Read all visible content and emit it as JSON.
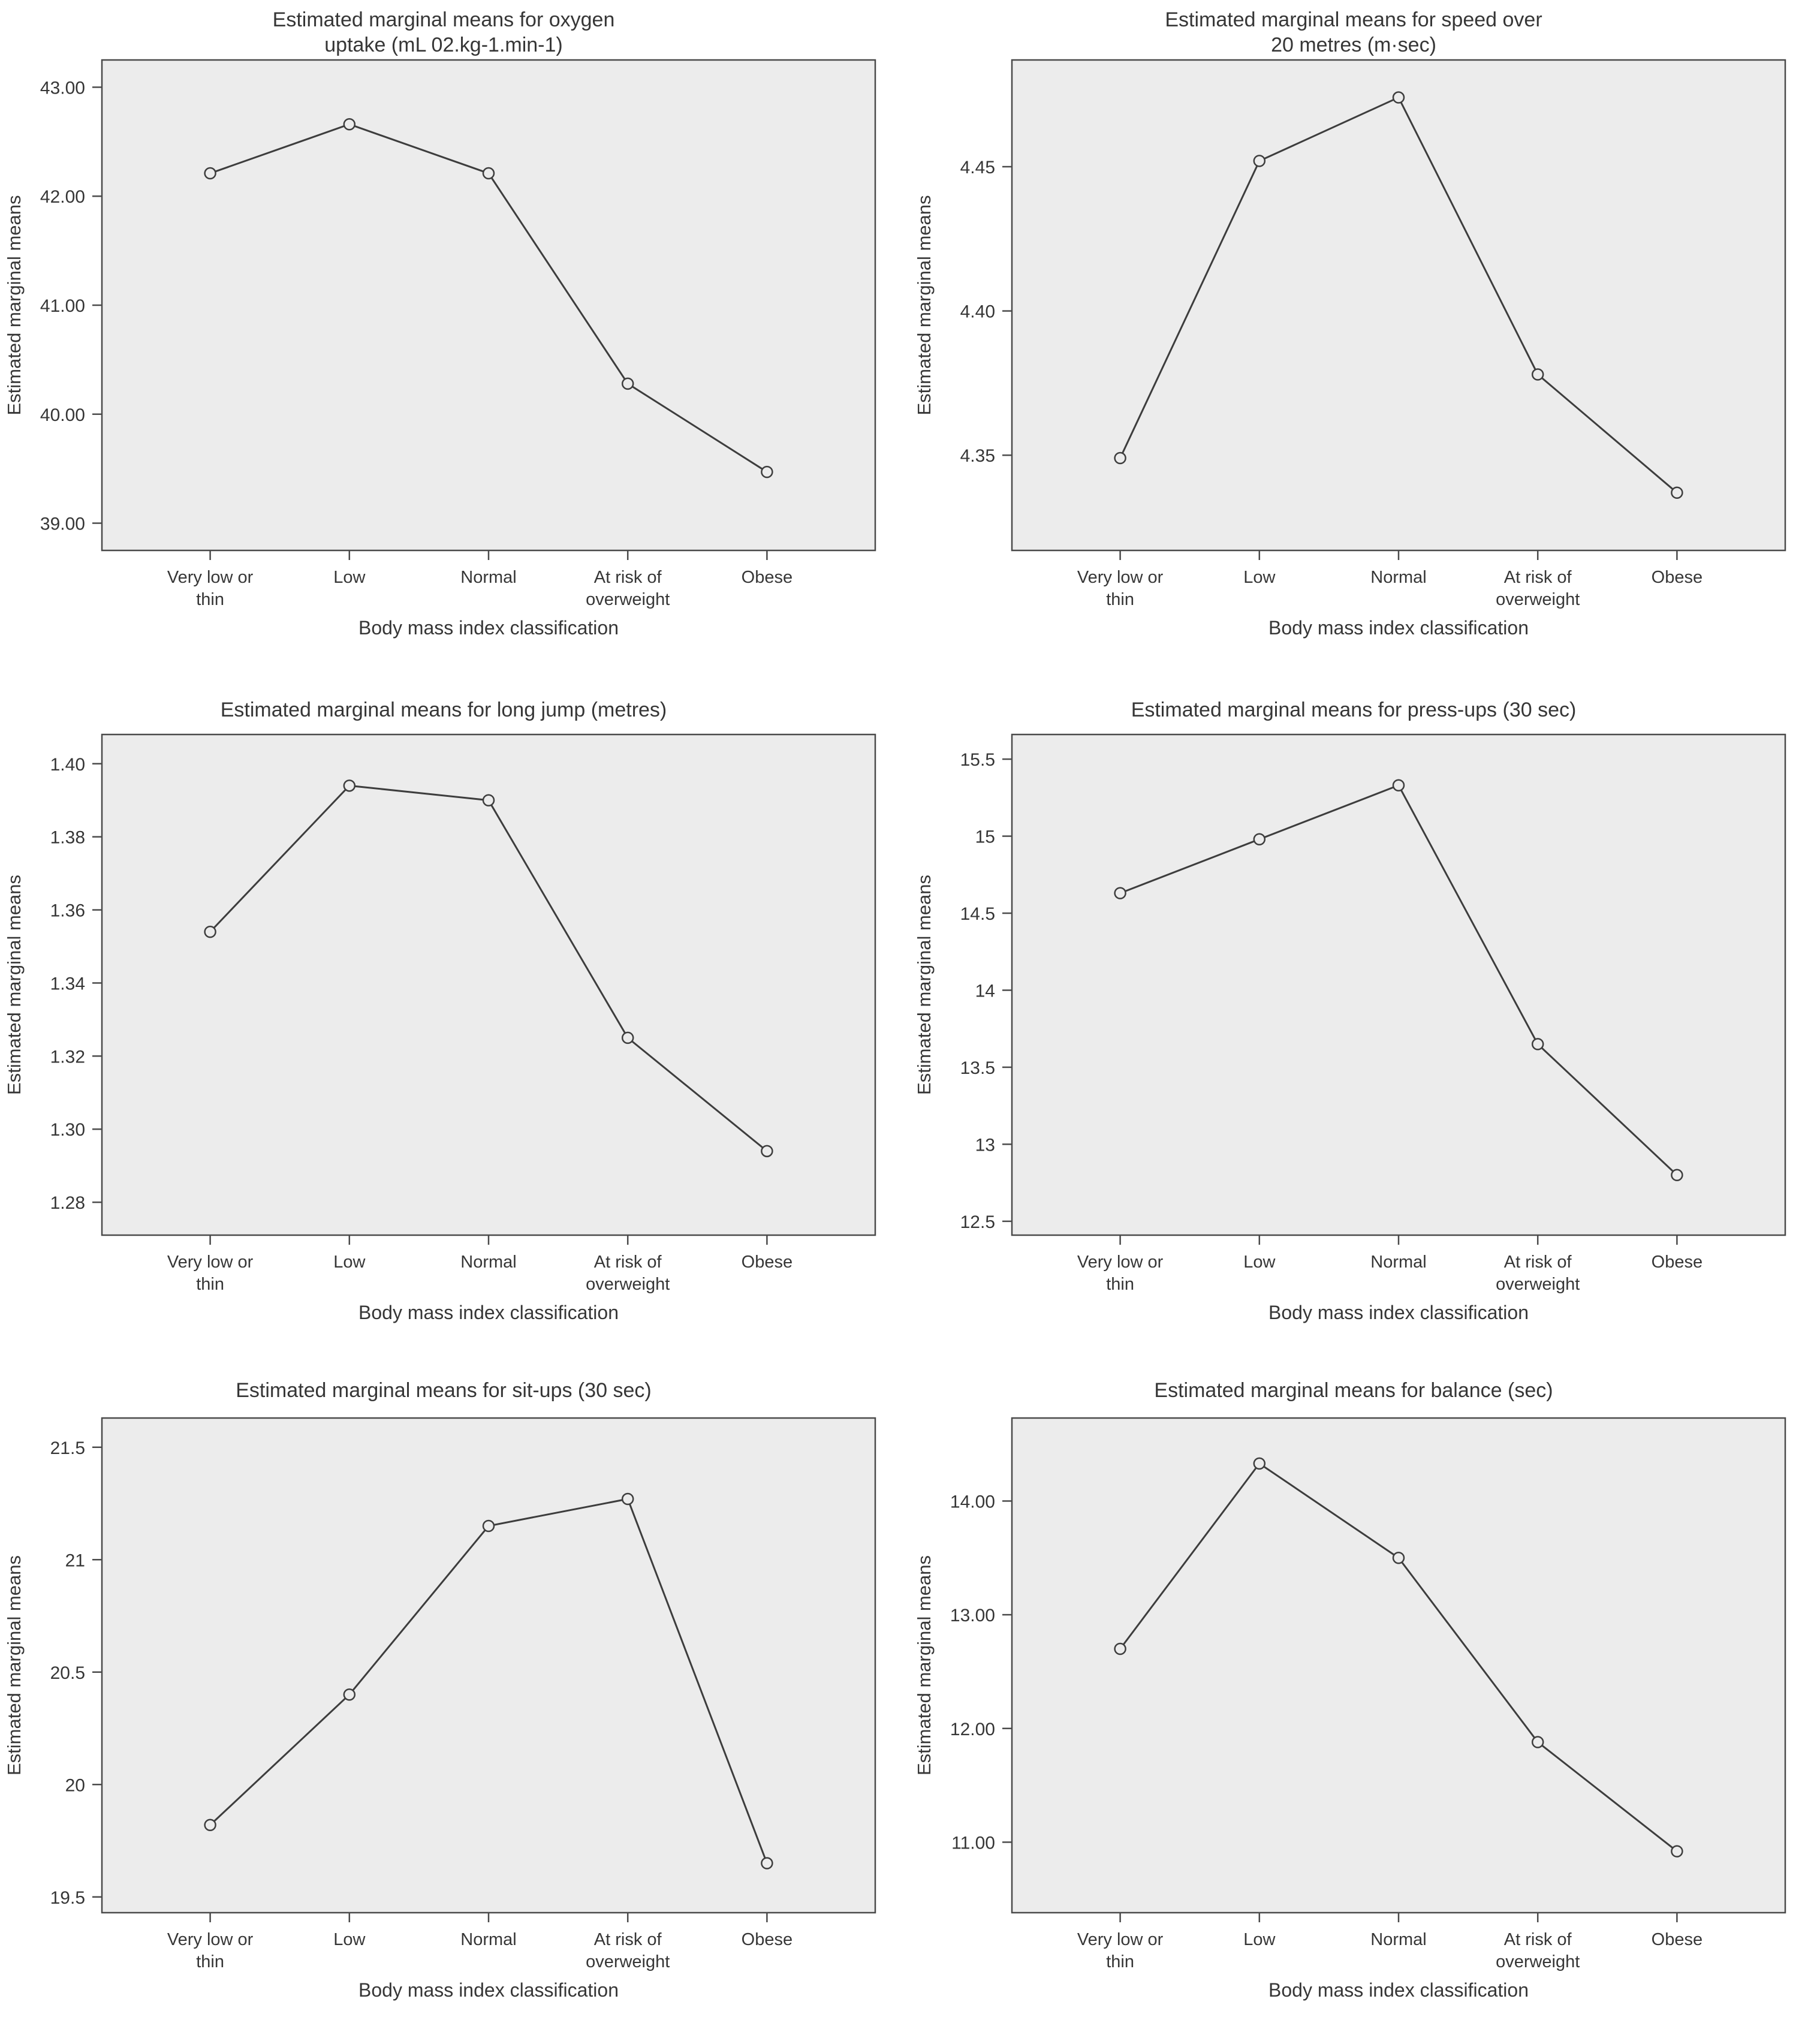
{
  "figure": {
    "description": "Six estimated marginal means line charts by body mass index classification",
    "colors": {
      "page_background": "#ffffff",
      "plot_background": "#ececec",
      "plot_border": "#4a4a4a",
      "line": "#3d3d3d",
      "marker_stroke": "#3d3d3d",
      "tick": "#4a4a4a",
      "text": "#363636"
    }
  },
  "chart_data": [
    {
      "id": "oxygen-uptake",
      "type": "line",
      "title": "Estimated marginal means for oxygen uptake  (mL 02.kg-1.min-1)",
      "title_lines": [
        "Estimated marginal means for oxygen",
        "uptake  (mL 02.kg-1.min-1)"
      ],
      "xlabel": "Body mass index classification",
      "ylabel": "Estimated marginal means",
      "categories": [
        "Very low or thin",
        "Low",
        "Normal",
        "At risk of overweight",
        "Obese"
      ],
      "category_label_lines": [
        [
          "Very low or",
          "thin"
        ],
        [
          "Low"
        ],
        [
          "Normal"
        ],
        [
          "At risk of",
          "overweight"
        ],
        [
          "Obese"
        ]
      ],
      "values": [
        42.21,
        42.66,
        42.21,
        40.28,
        39.47
      ],
      "yticks": [
        {
          "value": 39,
          "label": "39.00"
        },
        {
          "value": 40,
          "label": "40.00"
        },
        {
          "value": 41,
          "label": "41.00"
        },
        {
          "value": 42,
          "label": "42.00"
        },
        {
          "value": 43,
          "label": "43.00"
        }
      ],
      "ylim": [
        38.75,
        43.25
      ],
      "grid": false,
      "legend": null,
      "marker": "open-circle"
    },
    {
      "id": "speed-20m",
      "type": "line",
      "title": "Estimated marginal means for speed over 20 metres (m·sec)",
      "title_lines": [
        "Estimated marginal means for speed over",
        "20 metres (m·sec)"
      ],
      "xlabel": "Body mass index classification",
      "ylabel": "Estimated marginal means",
      "categories": [
        "Very low or thin",
        "Low",
        "Normal",
        "At risk of overweight",
        "Obese"
      ],
      "category_label_lines": [
        [
          "Very low or",
          "thin"
        ],
        [
          "Low"
        ],
        [
          "Normal"
        ],
        [
          "At risk of",
          "overweight"
        ],
        [
          "Obese"
        ]
      ],
      "values": [
        4.349,
        4.452,
        4.474,
        4.378,
        4.337
      ],
      "yticks": [
        {
          "value": 4.35,
          "label": "4.35"
        },
        {
          "value": 4.4,
          "label": "4.40"
        },
        {
          "value": 4.45,
          "label": "4.45"
        }
      ],
      "ylim": [
        4.317,
        4.487
      ],
      "grid": false,
      "legend": null,
      "marker": "open-circle"
    },
    {
      "id": "long-jump",
      "type": "line",
      "title": "Estimated marginal means for long jump (metres)",
      "title_lines": [
        "Estimated marginal means for long jump (metres)"
      ],
      "xlabel": "Body mass index classification",
      "ylabel": "Estimated marginal means",
      "categories": [
        "Very low or thin",
        "Low",
        "Normal",
        "At risk of overweight",
        "Obese"
      ],
      "category_label_lines": [
        [
          "Very low or",
          "thin"
        ],
        [
          "Low"
        ],
        [
          "Normal"
        ],
        [
          "At risk of",
          "overweight"
        ],
        [
          "Obese"
        ]
      ],
      "values": [
        1.354,
        1.394,
        1.39,
        1.325,
        1.294
      ],
      "yticks": [
        {
          "value": 1.28,
          "label": "1.28"
        },
        {
          "value": 1.3,
          "label": "1.30"
        },
        {
          "value": 1.32,
          "label": "1.32"
        },
        {
          "value": 1.34,
          "label": "1.34"
        },
        {
          "value": 1.36,
          "label": "1.36"
        },
        {
          "value": 1.38,
          "label": "1.38"
        },
        {
          "value": 1.4,
          "label": "1.40"
        }
      ],
      "ylim": [
        1.271,
        1.408
      ],
      "grid": false,
      "legend": null,
      "marker": "open-circle"
    },
    {
      "id": "press-ups",
      "type": "line",
      "title": "Estimated marginal means for press-ups (30 sec)",
      "title_lines": [
        "Estimated marginal means for press-ups (30 sec)"
      ],
      "xlabel": "Body mass index classification",
      "ylabel": "Estimated marginal means",
      "categories": [
        "Very low or thin",
        "Low",
        "Normal",
        "At risk of overweight",
        "Obese"
      ],
      "category_label_lines": [
        [
          "Very low or",
          "thin"
        ],
        [
          "Low"
        ],
        [
          "Normal"
        ],
        [
          "At risk of",
          "overweight"
        ],
        [
          "Obese"
        ]
      ],
      "values": [
        14.63,
        14.98,
        15.33,
        13.65,
        12.8
      ],
      "yticks": [
        {
          "value": 12.5,
          "label": "12.5"
        },
        {
          "value": 13,
          "label": "13"
        },
        {
          "value": 13.5,
          "label": "13.5"
        },
        {
          "value": 14,
          "label": "14"
        },
        {
          "value": 14.5,
          "label": "14.5"
        },
        {
          "value": 15,
          "label": "15"
        },
        {
          "value": 15.5,
          "label": "15.5"
        }
      ],
      "ylim": [
        12.41,
        15.66
      ],
      "grid": false,
      "legend": null,
      "marker": "open-circle"
    },
    {
      "id": "sit-ups",
      "type": "line",
      "title": "Estimated marginal means for sit-ups (30 sec)",
      "title_lines": [
        "Estimated marginal means for sit-ups (30 sec)"
      ],
      "xlabel": "Body mass index classification",
      "ylabel": "Estimated marginal means",
      "categories": [
        "Very low or thin",
        "Low",
        "Normal",
        "At risk of overweight",
        "Obese"
      ],
      "category_label_lines": [
        [
          "Very low or",
          "thin"
        ],
        [
          "Low"
        ],
        [
          "Normal"
        ],
        [
          "At risk of",
          "overweight"
        ],
        [
          "Obese"
        ]
      ],
      "values": [
        19.82,
        20.4,
        21.15,
        21.27,
        19.65
      ],
      "yticks": [
        {
          "value": 19.5,
          "label": "19.5"
        },
        {
          "value": 20,
          "label": "20"
        },
        {
          "value": 20.5,
          "label": "20.5"
        },
        {
          "value": 21,
          "label": "21"
        },
        {
          "value": 21.5,
          "label": "21.5"
        }
      ],
      "ylim": [
        19.43,
        21.63
      ],
      "grid": false,
      "legend": null,
      "marker": "open-circle"
    },
    {
      "id": "balance",
      "type": "line",
      "title": "Estimated marginal means for balance (sec)",
      "title_lines": [
        "Estimated marginal means for balance (sec)"
      ],
      "xlabel": "Body mass index classification",
      "ylabel": "Estimated marginal means",
      "categories": [
        "Very low or thin",
        "Low",
        "Normal",
        "At risk of overweight",
        "Obese"
      ],
      "category_label_lines": [
        [
          "Very low or",
          "thin"
        ],
        [
          "Low"
        ],
        [
          "Normal"
        ],
        [
          "At risk of",
          "overweight"
        ],
        [
          "Obese"
        ]
      ],
      "values": [
        12.7,
        14.33,
        13.5,
        11.88,
        10.92
      ],
      "yticks": [
        {
          "value": 11,
          "label": "11.00"
        },
        {
          "value": 12,
          "label": "12.00"
        },
        {
          "value": 13,
          "label": "13.00"
        },
        {
          "value": 14,
          "label": "14.00"
        }
      ],
      "ylim": [
        10.38,
        14.73
      ],
      "grid": false,
      "legend": null,
      "marker": "open-circle"
    }
  ]
}
